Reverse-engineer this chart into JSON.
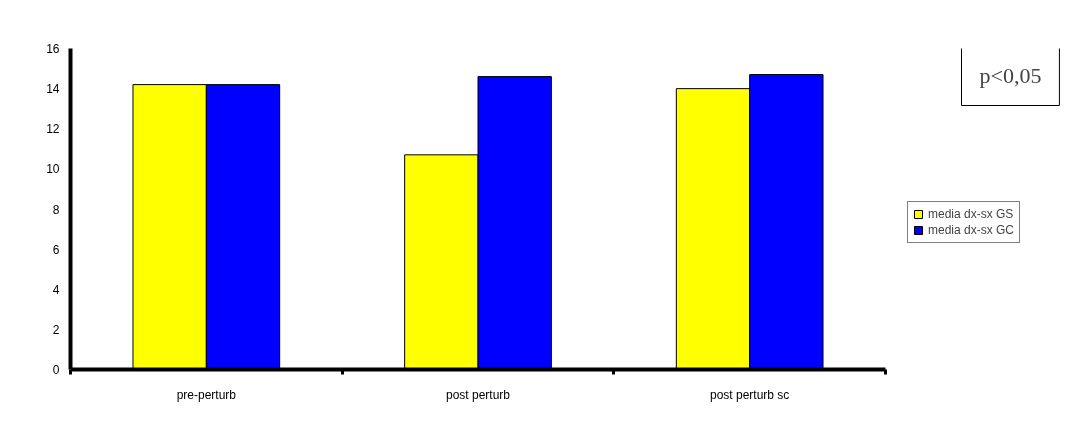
{
  "chart_data": {
    "type": "bar",
    "categories": [
      "pre-perturb",
      "post perturb",
      "post perturb sc"
    ],
    "series": [
      {
        "name": "media dx-sx GS",
        "color": "#ffff00",
        "values": [
          14.2,
          10.7,
          14.0
        ]
      },
      {
        "name": "media dx-sx GC",
        "color": "#0000ff",
        "values": [
          14.2,
          14.6,
          14.7
        ]
      }
    ],
    "ylim": [
      0,
      16
    ],
    "yticks": [
      0,
      2,
      4,
      6,
      8,
      10,
      12,
      14,
      16
    ],
    "grid": false,
    "legend": "right",
    "annotations": [
      "p<0,05"
    ]
  }
}
